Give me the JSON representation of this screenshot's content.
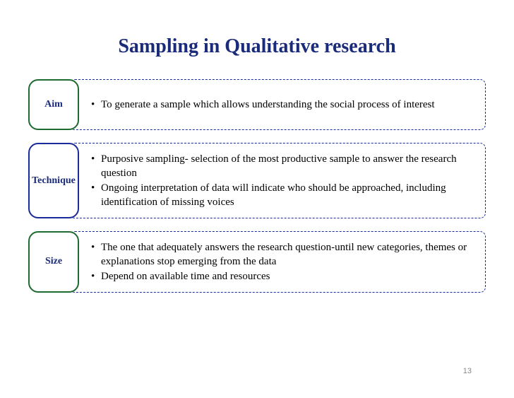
{
  "title": "Sampling in Qualitative research",
  "title_color": "#1a2b7a",
  "title_fontsize": 28,
  "background_color": "#ffffff",
  "label_text_color": "#1a2b7a",
  "content_text_color": "#000000",
  "content_border_color": "#1a2b9a",
  "page_number": "13",
  "page_number_color": "#888888",
  "rows": [
    {
      "label": "Aim",
      "label_border_color": "#1e6b2f",
      "bullets": [
        "To generate a sample which allows understanding the social process of interest"
      ]
    },
    {
      "label": "Technique",
      "label_border_color": "#1a2b9a",
      "bullets": [
        "Purposive sampling- selection of the most productive sample to answer the research question",
        "Ongoing interpretation of data will indicate who should be approached, including identification of missing voices"
      ]
    },
    {
      "label": "Size",
      "label_border_color": "#1e6b2f",
      "bullets": [
        "The one that adequately answers the research question-until new categories, themes or explanations stop emerging from the data",
        "Depend on available time and resources"
      ]
    }
  ]
}
